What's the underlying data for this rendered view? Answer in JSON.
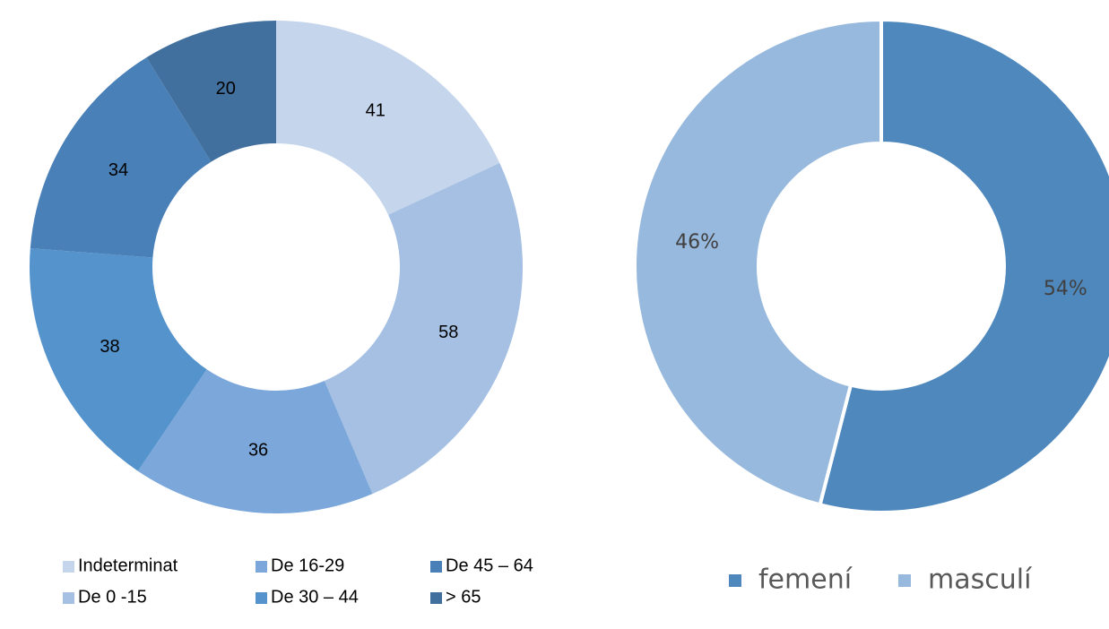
{
  "chart_data": [
    {
      "type": "donut",
      "categories": [
        "Indeterminat",
        "De 0 -15",
        "De 16-29",
        "De 30 – 44",
        "De 45 – 64",
        "> 65"
      ],
      "values": [
        41,
        58,
        36,
        38,
        34,
        20
      ],
      "colors": [
        "#c5d5ec",
        "#a5c0e3",
        "#7ba7da",
        "#5593cc",
        "#4a80b8",
        "#41709e"
      ]
    },
    {
      "type": "donut",
      "categories": [
        "femení",
        "masculí"
      ],
      "values": [
        54,
        46
      ],
      "value_labels": [
        "54%",
        "46%"
      ],
      "colors": [
        "#4f88bd",
        "#98b9de"
      ]
    }
  ]
}
